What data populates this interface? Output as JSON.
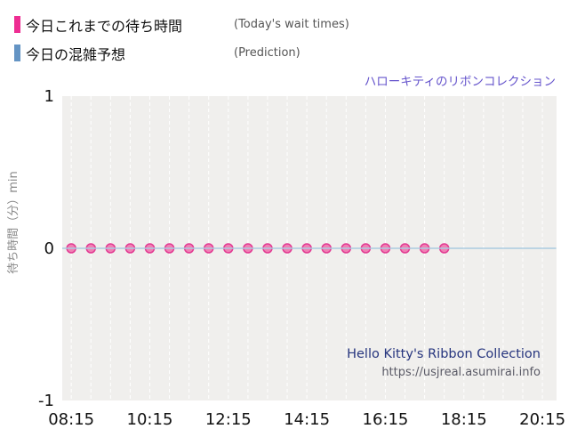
{
  "legend": {
    "today": {
      "label": "今日これまでの待ち時間",
      "sublabel": "(Today's wait times)",
      "color": "#ee2d92"
    },
    "prediction": {
      "label": "今日の混雑予想",
      "sublabel": "(Prediction)",
      "color": "#6494c4"
    }
  },
  "attraction_title": {
    "text": "ハローキティのリボンコレクション",
    "color": "#6655cc"
  },
  "watermark": {
    "title": "Hello Kitty's Ribbon Collection",
    "url": "https://usjreal.asumirai.info"
  },
  "chart_data": {
    "type": "scatter",
    "title": "ハローキティのリボンコレクション",
    "xlabel": "",
    "ylabel": "待ち時間（分）min",
    "ylim": [
      -1,
      1
    ],
    "yticks": [
      1,
      0,
      -1
    ],
    "x_axis": {
      "domain_hours": [
        8.02,
        20.61
      ],
      "ticks": [
        {
          "label": "08:15",
          "hour": 8.25
        },
        {
          "label": "10:15",
          "hour": 10.25
        },
        {
          "label": "12:15",
          "hour": 12.25
        },
        {
          "label": "14:15",
          "hour": 14.25
        },
        {
          "label": "16:15",
          "hour": 16.25
        },
        {
          "label": "18:15",
          "hour": 18.25
        },
        {
          "label": "20:15",
          "hour": 20.25
        }
      ]
    },
    "gridlines": {
      "first": "08:15",
      "vertical_every_minutes": 30,
      "color": "#ffffff",
      "dashed": true
    },
    "plot_background": "#f0efed",
    "series": [
      {
        "name": "今日これまでの待ち時間",
        "type": "scatter",
        "stroke": "#e23a92",
        "fill": "#ef74ad",
        "x": [
          "08:15",
          "08:45",
          "09:15",
          "09:45",
          "10:15",
          "10:45",
          "11:15",
          "11:45",
          "12:15",
          "12:45",
          "13:15",
          "13:45",
          "14:15",
          "14:45",
          "15:15",
          "15:45",
          "16:15",
          "16:45",
          "17:15",
          "17:45"
        ],
        "y": [
          0,
          0,
          0,
          0,
          0,
          0,
          0,
          0,
          0,
          0,
          0,
          0,
          0,
          0,
          0,
          0,
          0,
          0,
          0,
          0
        ]
      },
      {
        "name": "今日の混雑予想",
        "type": "line",
        "stroke": "#abcbe0",
        "x": [
          "08:01",
          "20:36"
        ],
        "y": [
          0,
          0
        ]
      }
    ]
  }
}
